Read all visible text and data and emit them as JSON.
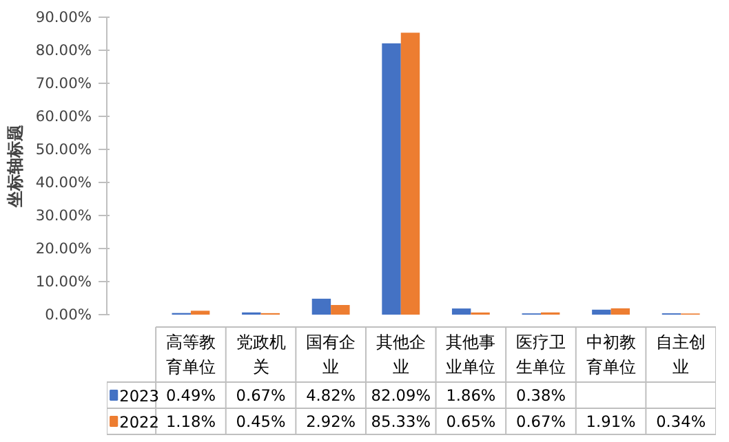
{
  "chart_data": {
    "type": "bar",
    "ylabel": "坐标轴标题",
    "categories": [
      "高等教育单位",
      "党政机关",
      "国有企业",
      "其他企业",
      "其他事业单位",
      "医疗卫生单位",
      "中初教育单位",
      "自主创业"
    ],
    "series": [
      {
        "name": "2023",
        "color": "#4472c4",
        "values": [
          0.49,
          0.67,
          4.82,
          82.09,
          1.86,
          0.38,
          1.5,
          0.4
        ],
        "value_labels": [
          "0.49%",
          "0.67%",
          "4.82%",
          "82.09%",
          "1.86%",
          "0.38%",
          null,
          null
        ]
      },
      {
        "name": "2022",
        "color": "#ed7d31",
        "values": [
          1.18,
          0.45,
          2.92,
          85.33,
          0.65,
          0.67,
          1.91,
          0.34
        ],
        "value_labels": [
          "1.18%",
          "0.45%",
          "2.92%",
          "85.33%",
          "0.65%",
          "0.67%",
          "1.91%",
          "0.34%"
        ]
      }
    ],
    "ylim": [
      0,
      90
    ],
    "yticks": [
      {
        "value": 0,
        "label": "0.00%"
      },
      {
        "value": 10,
        "label": "10.00%"
      },
      {
        "value": 20,
        "label": "20.00%"
      },
      {
        "value": 30,
        "label": "30.00%"
      },
      {
        "value": 40,
        "label": "40.00%"
      },
      {
        "value": 50,
        "label": "50.00%"
      },
      {
        "value": 60,
        "label": "60.00%"
      },
      {
        "value": 70,
        "label": "70.00%"
      },
      {
        "value": 80,
        "label": "80.00%"
      },
      {
        "value": 90,
        "label": "90.00%"
      }
    ],
    "grid": false,
    "legend": "bottom"
  }
}
